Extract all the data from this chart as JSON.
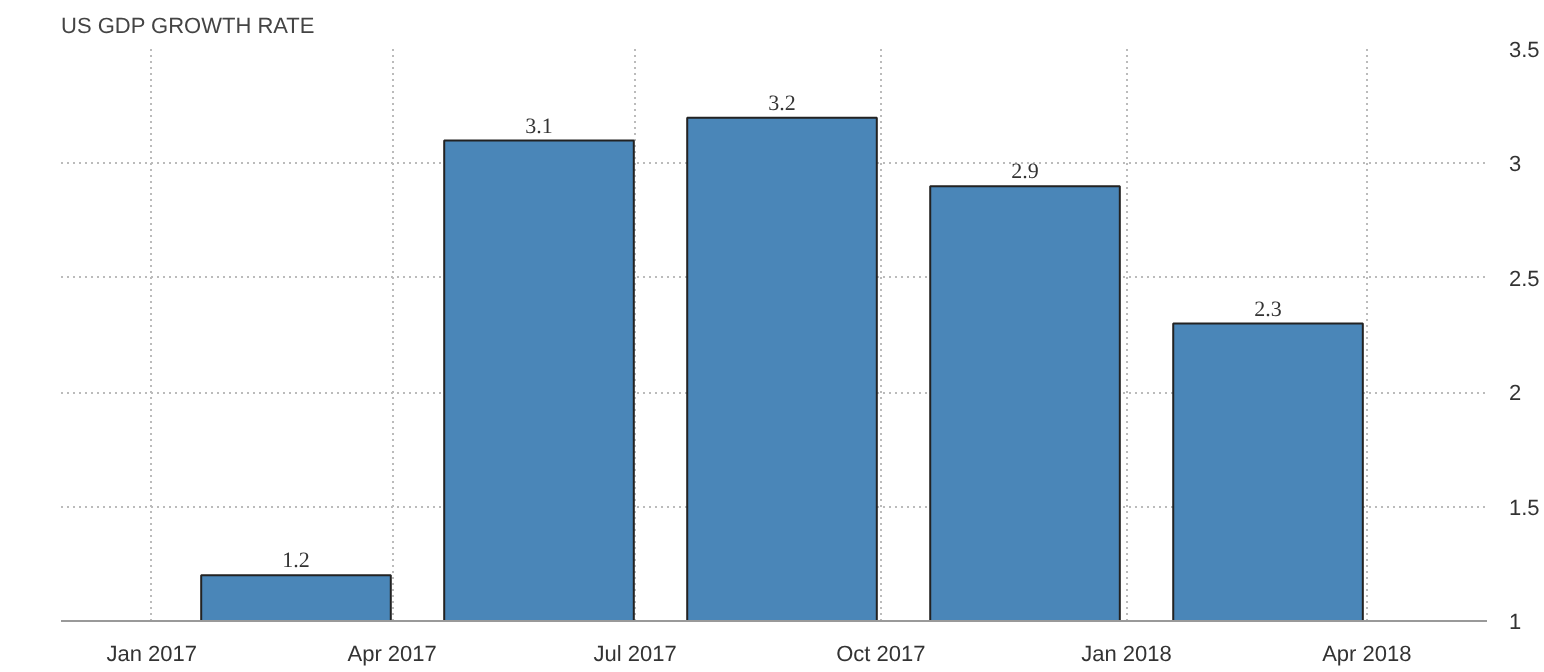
{
  "chart_data": {
    "type": "bar",
    "title": "US GDP GROWTH RATE",
    "x": [
      "2017-02-24",
      "2017-05-26",
      "2017-08-25",
      "2017-11-24",
      "2018-02-23"
    ],
    "values": [
      1.2,
      3.1,
      3.2,
      2.9,
      2.3
    ],
    "color": "#4a86b8",
    "data_labels": true,
    "xlim": [
      "2016-11-28",
      "2018-05-16"
    ],
    "xticks": [
      {
        "value": "2017-01-01",
        "label": "Jan 2017"
      },
      {
        "value": "2017-04-01",
        "label": "Apr 2017"
      },
      {
        "value": "2017-07-01",
        "label": "Jul 2017"
      },
      {
        "value": "2017-10-01",
        "label": "Oct 2017"
      },
      {
        "value": "2018-01-01",
        "label": "Jan 2018"
      },
      {
        "value": "2018-04-01",
        "label": "Apr 2018"
      }
    ],
    "ylim": [
      1,
      3.5
    ],
    "yticks": [
      1,
      1.5,
      2,
      2.5,
      3,
      3.5
    ],
    "grid": true
  }
}
